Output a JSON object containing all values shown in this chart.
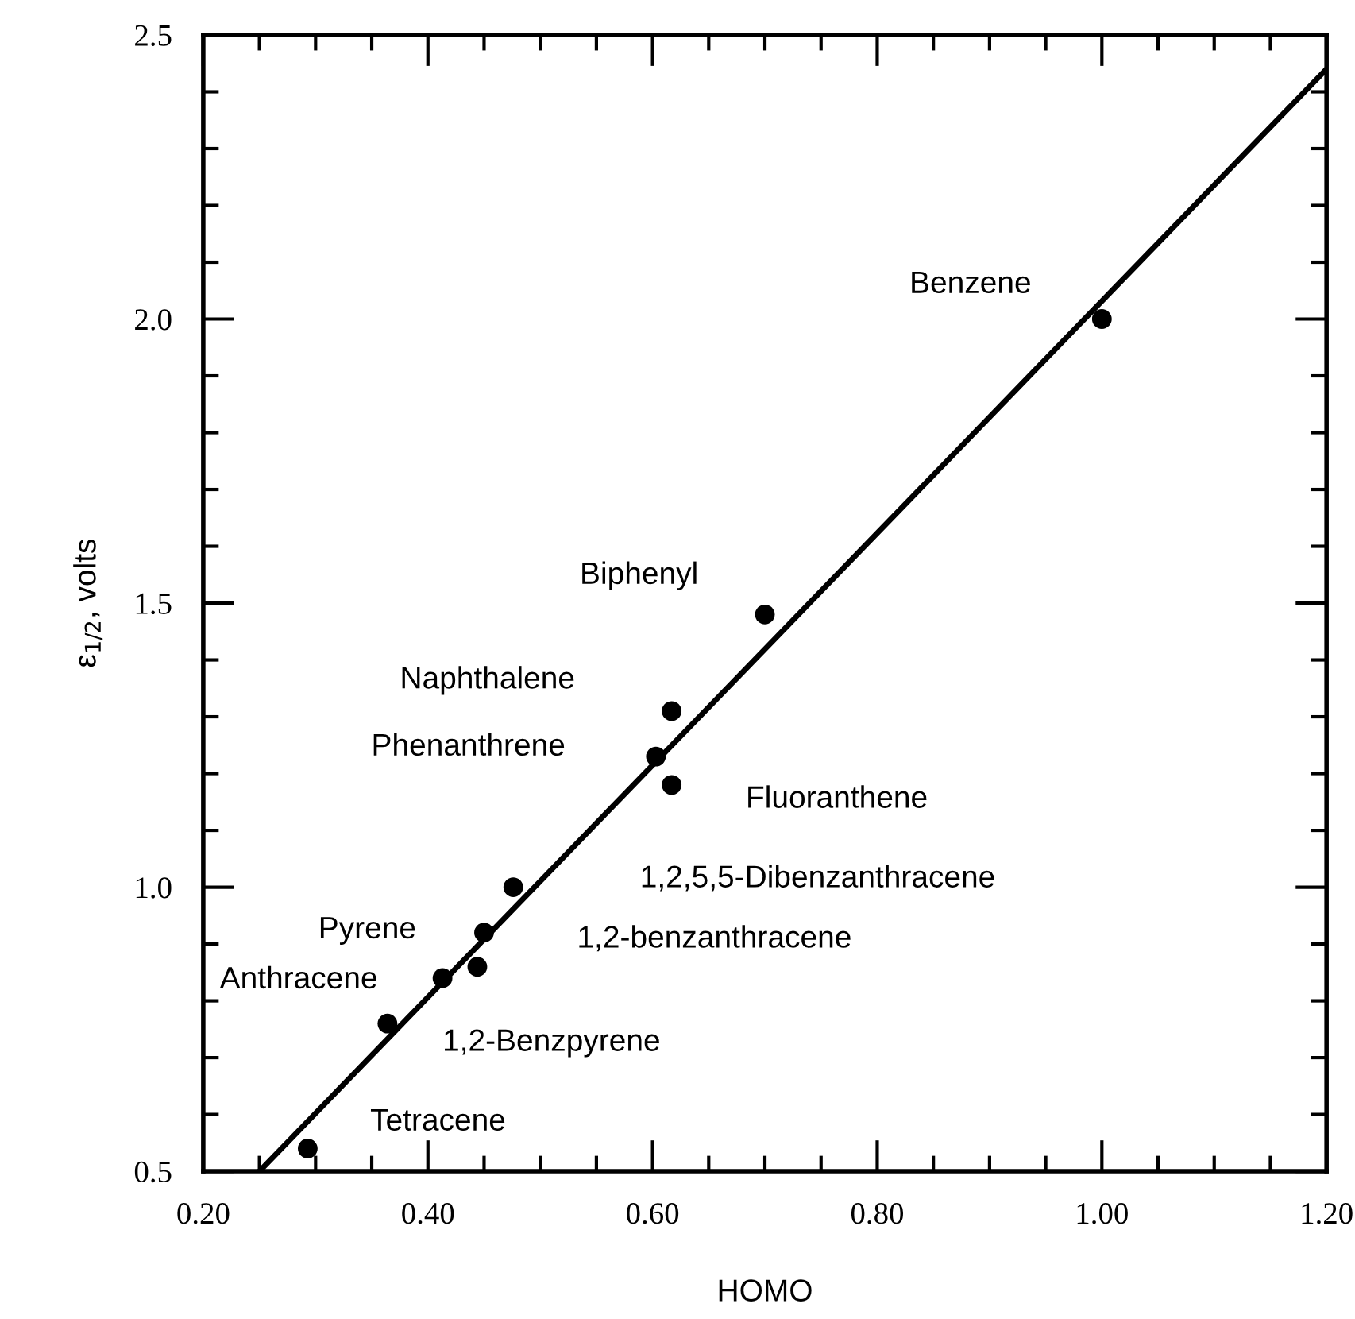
{
  "chart_data": {
    "type": "scatter",
    "xlabel": "HOMO",
    "ylabel": "ε$_{1/2}$, volts",
    "xlim": [
      0.2,
      1.2
    ],
    "ylim": [
      0.5,
      2.5
    ],
    "xticks": [
      {
        "value": 0.2,
        "label": "0.20"
      },
      {
        "value": 0.25,
        "label": null
      },
      {
        "value": 0.3,
        "label": null
      },
      {
        "value": 0.35,
        "label": null
      },
      {
        "value": 0.4,
        "label": "0.40"
      },
      {
        "value": 0.45,
        "label": null
      },
      {
        "value": 0.5,
        "label": null
      },
      {
        "value": 0.55,
        "label": null
      },
      {
        "value": 0.6,
        "label": "0.60"
      },
      {
        "value": 0.65,
        "label": null
      },
      {
        "value": 0.7,
        "label": null
      },
      {
        "value": 0.75,
        "label": null
      },
      {
        "value": 0.8,
        "label": "0.80"
      },
      {
        "value": 0.85,
        "label": null
      },
      {
        "value": 0.9,
        "label": null
      },
      {
        "value": 0.95,
        "label": null
      },
      {
        "value": 1.0,
        "label": "1.00"
      },
      {
        "value": 1.05,
        "label": null
      },
      {
        "value": 1.1,
        "label": null
      },
      {
        "value": 1.15,
        "label": null
      },
      {
        "value": 1.2,
        "label": "1.20"
      }
    ],
    "yticks": [
      0.5,
      {
        "value": 0.6,
        "label": null
      },
      {
        "value": 0.7,
        "label": null
      },
      {
        "value": 0.8,
        "label": null
      },
      {
        "value": 0.9,
        "label": null
      },
      {
        "value": 1.0,
        "label": "1.0"
      },
      {
        "value": 1.1,
        "label": null
      },
      {
        "value": 1.2,
        "label": null
      },
      {
        "value": 1.3,
        "label": null
      },
      {
        "value": 1.4,
        "label": null
      },
      1.5,
      {
        "value": 1.6,
        "label": null
      },
      {
        "value": 1.7,
        "label": null
      },
      {
        "value": 1.8,
        "label": null
      },
      {
        "value": 1.9,
        "label": null
      },
      {
        "value": 2.0,
        "label": "2.0"
      },
      {
        "value": 2.1,
        "label": null
      },
      {
        "value": 2.2,
        "label": null
      },
      {
        "value": 2.3,
        "label": null
      },
      {
        "value": 2.4,
        "label": null
      },
      2.5
    ],
    "grid": false,
    "series": [
      {
        "marker": "circle",
        "color": "#000000",
        "x": [
          1.0,
          0.7,
          0.617,
          0.603,
          0.617,
          0.476,
          0.45,
          0.444,
          0.413,
          0.364,
          0.293
        ],
        "values": [
          2.0,
          1.48,
          1.31,
          1.23,
          1.18,
          1.0,
          0.92,
          0.86,
          0.84,
          0.76,
          0.54
        ]
      },
      {
        "type": "line",
        "marker": "none",
        "color": "#000000",
        "x": [
          0.25,
          1.2
        ],
        "values": [
          0.5,
          2.44
        ]
      }
    ],
    "annotations": [
      "Benzene",
      "Biphenyl",
      "Naphthalene",
      "Phenanthrene",
      "Fluoranthene",
      "1,2,5,5-Dibenzanthracene",
      "Pyrene",
      "1,2-benzanthracene",
      "Anthracene",
      "1,2-Benzpyrene",
      "Tetracene"
    ]
  }
}
